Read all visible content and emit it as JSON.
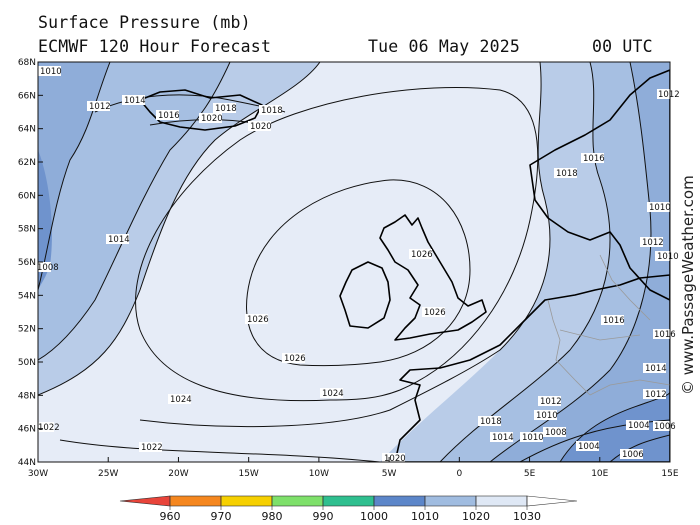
{
  "header": {
    "title": "Surface Pressure (mb)",
    "model": "ECMWF 120 Hour Forecast",
    "date": "Tue 06 May 2025",
    "time": "00 UTC"
  },
  "watermark": "© www.PassageWeather.com",
  "axes": {
    "lat_labels": [
      "68N",
      "66N",
      "64N",
      "62N",
      "60N",
      "58N",
      "56N",
      "54N",
      "52N",
      "50N",
      "48N",
      "46N",
      "44N"
    ],
    "lon_labels": [
      "30W",
      "25W",
      "20W",
      "15W",
      "10W",
      "5W",
      "0",
      "5E",
      "10E",
      "15E"
    ]
  },
  "isobar_labels": [
    "1010",
    "1012",
    "1014",
    "1016",
    "1018",
    "1020",
    "1020",
    "1018",
    "1014",
    "1026",
    "1026",
    "1026",
    "1026",
    "1024",
    "1024",
    "1022",
    "1022",
    "1020",
    "1008",
    "1016",
    "1018",
    "1010",
    "1012",
    "1016",
    "1018",
    "1014",
    "1012",
    "1010",
    "1016",
    "1014",
    "1010",
    "1012",
    "1010",
    "1008",
    "1004",
    "1004",
    "1006",
    "1006",
    "1012"
  ],
  "colorbar": {
    "labels": [
      "960",
      "970",
      "980",
      "990",
      "1000",
      "1010",
      "1020",
      "1030"
    ],
    "colors": [
      "#e8443a",
      "#f5871f",
      "#f6d000",
      "#7ee06a",
      "#2fbf8f",
      "#5c86c9",
      "#a0bce0",
      "#dfe8f5",
      "#ffffff"
    ]
  },
  "fill_colors": {
    "band_1030": "#e6ecf7",
    "band_1020": "#b5c9e6",
    "band_1010": "#8eacd8",
    "band_1000": "#6c90cc",
    "land": "#e6ecf7"
  }
}
